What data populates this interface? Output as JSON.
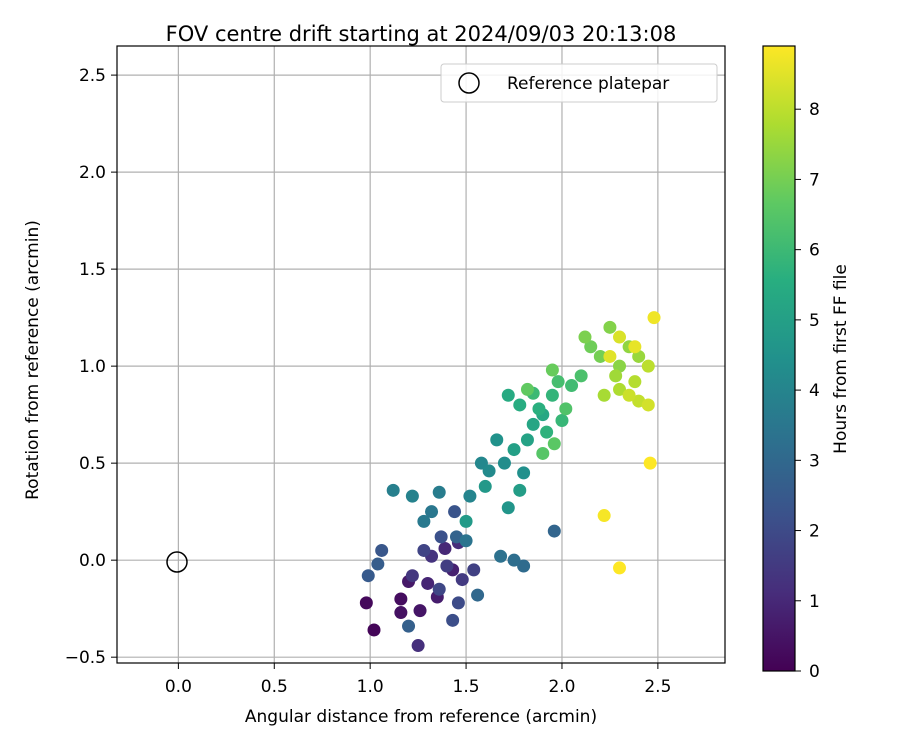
{
  "chart_data": {
    "type": "scatter",
    "title": "FOV centre drift starting at 2024/09/03 20:13:08",
    "xlabel": "Angular distance from reference (arcmin)",
    "ylabel": "Rotation from reference (arcmin)",
    "xlim": [
      -0.32,
      2.85
    ],
    "ylim": [
      -0.53,
      2.65
    ],
    "xticks": [
      0.0,
      0.5,
      1.0,
      1.5,
      2.0,
      2.5
    ],
    "xtick_labels": [
      "0.0",
      "0.5",
      "1.0",
      "1.5",
      "2.0",
      "2.5"
    ],
    "yticks": [
      -0.5,
      0.0,
      0.5,
      1.0,
      1.5,
      2.0,
      2.5
    ],
    "ytick_labels": [
      "−0.5",
      "0.0",
      "0.5",
      "1.0",
      "1.5",
      "2.0",
      "2.5"
    ],
    "grid": true,
    "legend": {
      "position": "top-right",
      "entries": [
        "Reference platepar"
      ]
    },
    "reference_point": {
      "x": 0.0,
      "y": 0.0
    },
    "colorbar": {
      "label": "Hours from first FF file",
      "min": 0,
      "max": 8.9,
      "ticks": [
        0,
        1,
        2,
        3,
        4,
        5,
        6,
        7,
        8
      ],
      "tick_labels": [
        "0",
        "1",
        "2",
        "3",
        "4",
        "5",
        "6",
        "7",
        "8"
      ],
      "colormap": "viridis"
    },
    "points": [
      [
        1.02,
        -0.36,
        0.1
      ],
      [
        0.98,
        -0.22,
        0.2
      ],
      [
        1.16,
        -0.2,
        0.3
      ],
      [
        1.16,
        -0.27,
        0.4
      ],
      [
        1.26,
        -0.26,
        0.5
      ],
      [
        1.2,
        -0.11,
        0.6
      ],
      [
        1.35,
        -0.19,
        0.7
      ],
      [
        1.43,
        -0.05,
        0.8
      ],
      [
        1.3,
        -0.12,
        0.9
      ],
      [
        1.39,
        0.06,
        1.0
      ],
      [
        1.46,
        0.09,
        1.1
      ],
      [
        1.25,
        -0.44,
        1.2
      ],
      [
        1.32,
        0.02,
        1.3
      ],
      [
        1.22,
        -0.08,
        1.4
      ],
      [
        1.48,
        -0.1,
        1.5
      ],
      [
        1.4,
        -0.03,
        1.6
      ],
      [
        1.54,
        -0.05,
        1.7
      ],
      [
        1.28,
        0.05,
        1.8
      ],
      [
        1.36,
        -0.15,
        1.9
      ],
      [
        1.46,
        -0.22,
        2.0
      ],
      [
        1.43,
        -0.31,
        2.1
      ],
      [
        1.37,
        0.12,
        2.2
      ],
      [
        1.44,
        0.25,
        2.3
      ],
      [
        1.06,
        0.05,
        2.4
      ],
      [
        0.99,
        -0.08,
        2.5
      ],
      [
        1.04,
        -0.02,
        2.6
      ],
      [
        1.2,
        -0.34,
        2.7
      ],
      [
        1.45,
        0.12,
        2.8
      ],
      [
        1.96,
        0.15,
        2.9
      ],
      [
        1.56,
        -0.18,
        3.0
      ],
      [
        1.8,
        -0.03,
        3.1
      ],
      [
        1.75,
        0.0,
        3.2
      ],
      [
        1.68,
        0.02,
        3.3
      ],
      [
        1.5,
        0.1,
        3.4
      ],
      [
        1.32,
        0.25,
        3.5
      ],
      [
        1.28,
        0.2,
        3.6
      ],
      [
        1.36,
        0.35,
        3.7
      ],
      [
        1.12,
        0.36,
        3.8
      ],
      [
        1.22,
        0.33,
        3.9
      ],
      [
        1.52,
        0.33,
        4.0
      ],
      [
        1.58,
        0.5,
        4.1
      ],
      [
        1.62,
        0.46,
        4.2
      ],
      [
        1.7,
        0.5,
        4.3
      ],
      [
        1.8,
        0.45,
        4.4
      ],
      [
        1.66,
        0.62,
        4.5
      ],
      [
        1.72,
        0.27,
        4.6
      ],
      [
        1.6,
        0.38,
        4.7
      ],
      [
        1.5,
        0.2,
        4.8
      ],
      [
        1.78,
        0.36,
        4.9
      ],
      [
        1.75,
        0.57,
        5.0
      ],
      [
        1.82,
        0.62,
        5.1
      ],
      [
        1.85,
        0.7,
        5.2
      ],
      [
        1.9,
        0.75,
        5.3
      ],
      [
        1.72,
        0.85,
        5.4
      ],
      [
        1.78,
        0.8,
        5.5
      ],
      [
        1.88,
        0.78,
        5.6
      ],
      [
        1.92,
        0.66,
        5.7
      ],
      [
        1.95,
        0.85,
        5.8
      ],
      [
        2.0,
        0.72,
        5.9
      ],
      [
        1.85,
        0.86,
        6.0
      ],
      [
        2.05,
        0.9,
        6.1
      ],
      [
        1.98,
        0.92,
        6.2
      ],
      [
        2.1,
        0.95,
        6.3
      ],
      [
        2.02,
        0.78,
        6.4
      ],
      [
        1.9,
        0.55,
        6.5
      ],
      [
        1.96,
        0.6,
        6.6
      ],
      [
        1.82,
        0.88,
        6.7
      ],
      [
        1.95,
        0.98,
        6.8
      ],
      [
        2.15,
        1.1,
        6.9
      ],
      [
        2.2,
        1.05,
        7.0
      ],
      [
        2.12,
        1.15,
        7.1
      ],
      [
        2.25,
        1.2,
        7.2
      ],
      [
        2.3,
        1.0,
        7.3
      ],
      [
        2.35,
        1.1,
        7.4
      ],
      [
        2.4,
        1.05,
        7.5
      ],
      [
        2.28,
        0.95,
        7.6
      ],
      [
        2.22,
        0.85,
        7.7
      ],
      [
        2.3,
        0.88,
        7.8
      ],
      [
        2.38,
        0.92,
        7.9
      ],
      [
        2.45,
        1.0,
        8.0
      ],
      [
        2.4,
        0.82,
        8.1
      ],
      [
        2.35,
        0.85,
        8.2
      ],
      [
        2.45,
        0.8,
        8.3
      ],
      [
        2.3,
        1.15,
        8.4
      ],
      [
        2.25,
        1.05,
        8.5
      ],
      [
        2.38,
        1.1,
        8.6
      ],
      [
        2.48,
        1.25,
        8.7
      ],
      [
        2.22,
        0.23,
        8.8
      ],
      [
        2.3,
        -0.04,
        8.9
      ],
      [
        2.46,
        0.5,
        8.9
      ]
    ]
  }
}
